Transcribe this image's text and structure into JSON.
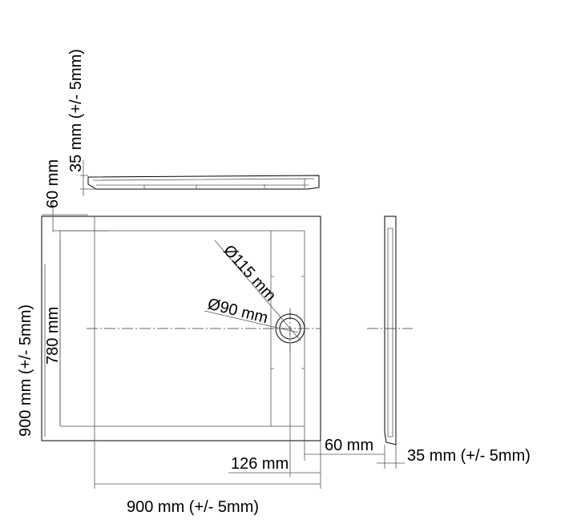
{
  "dimensions": {
    "profile_height": "35 mm (+/- 5mm)",
    "top_rim": "60 mm",
    "depth": "900 mm (+/- 5mm)",
    "inner_depth": "780 mm",
    "outlet_outer": "Ø115 mm",
    "outlet_inner": "Ø90 mm",
    "side_rim": "60 mm",
    "outlet_offset": "126 mm",
    "width": "900 mm (+/- 5mm)",
    "side_height": "35 mm (+/- 5mm)"
  }
}
